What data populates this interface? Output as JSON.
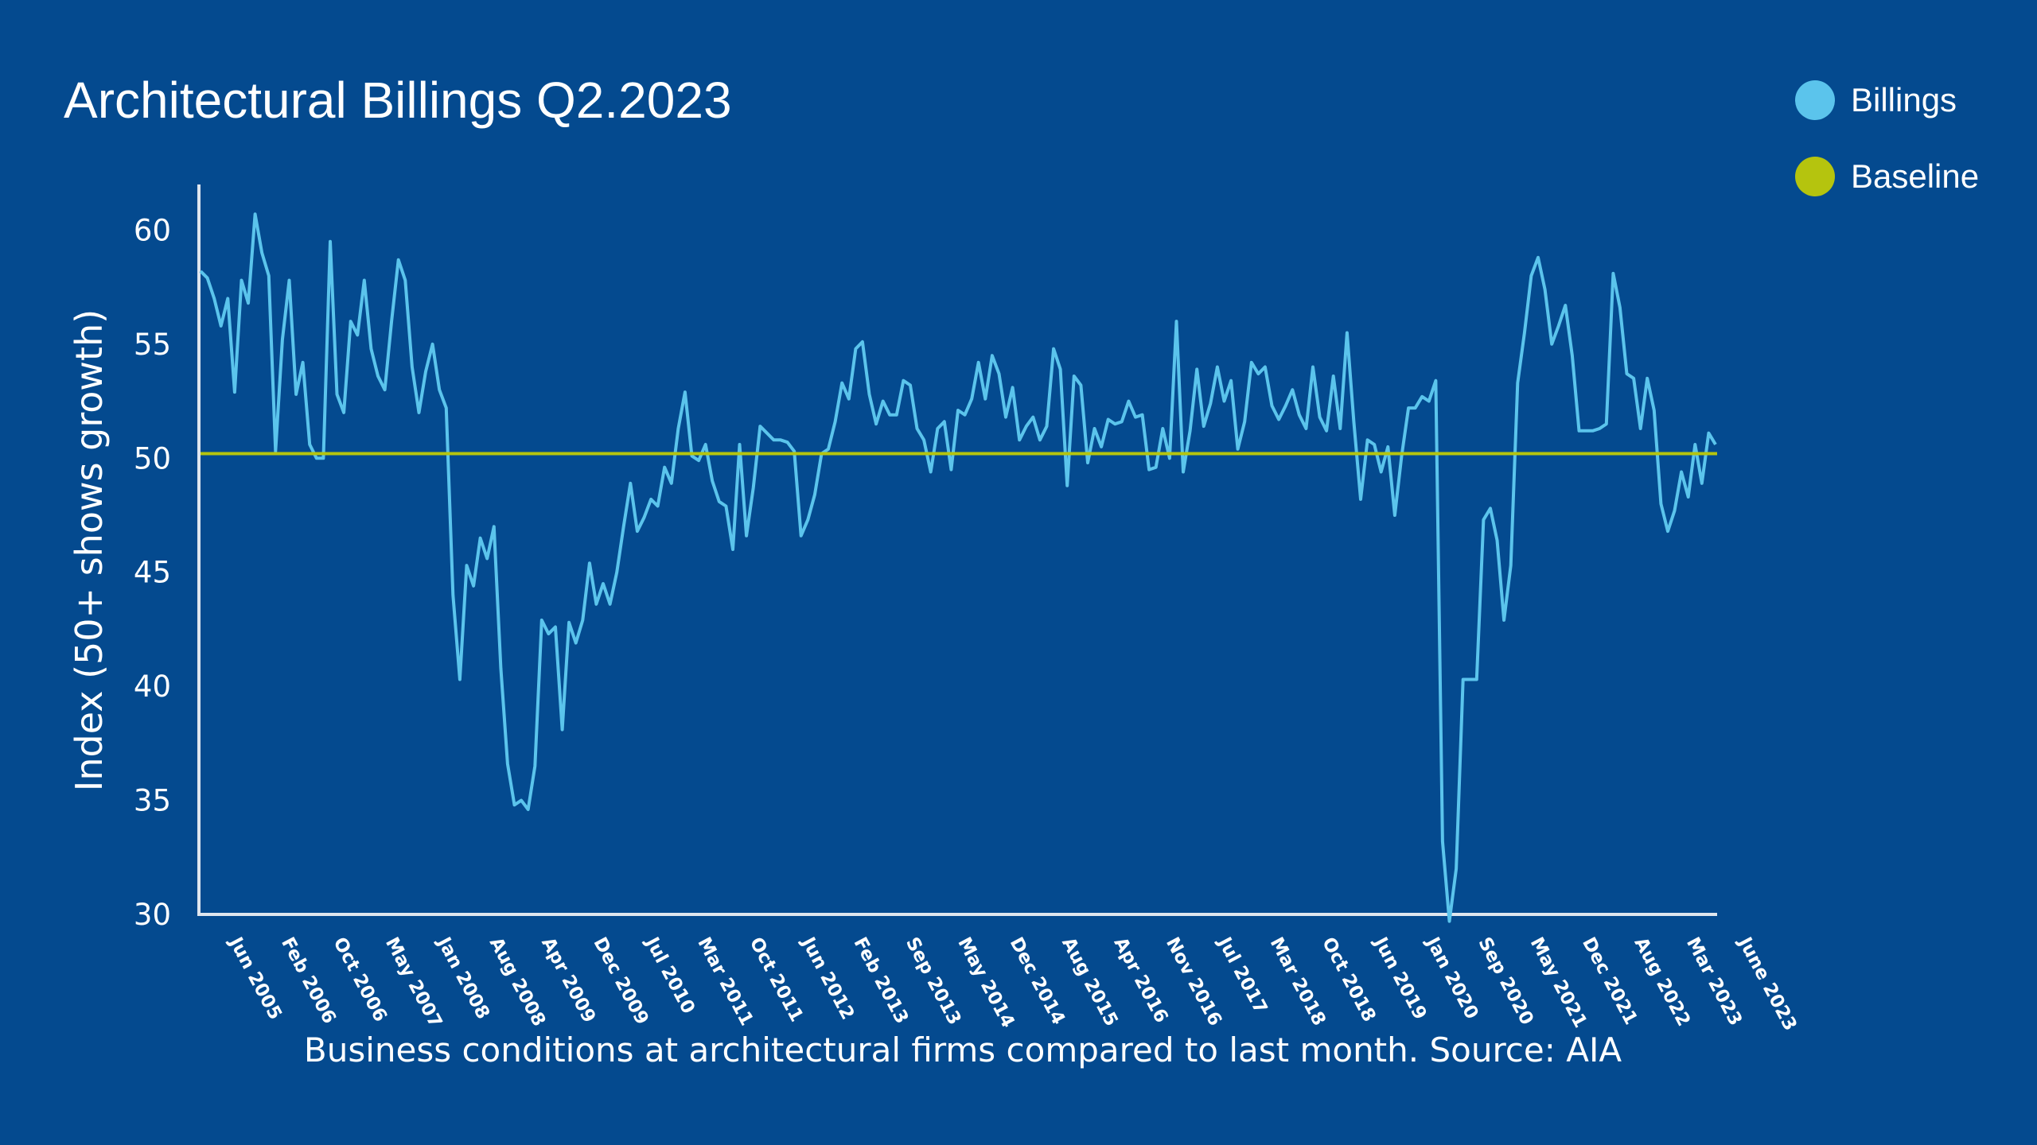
{
  "colors": {
    "background": "#044a8f",
    "billings": "#5bc4ec",
    "baseline": "#b5c40e",
    "axis": "#dfe6ef",
    "text": "#ffffff"
  },
  "chart_data": {
    "type": "line",
    "title": "Architectural Billings Q2.2023",
    "ylabel": "Index (50+ shows growth)",
    "xlabel": "",
    "caption": "Business conditions at architectural firms compared to last month. Source: AIA",
    "ylim": [
      30,
      62
    ],
    "yticks": [
      30,
      35,
      40,
      45,
      50,
      55,
      60
    ],
    "legend": [
      {
        "name": "Billings",
        "color": "#5bc4ec"
      },
      {
        "name": "Baseline",
        "color": "#b5c40e"
      }
    ],
    "legend_position": "top-right",
    "x_tick_labels": [
      "Jun 2005",
      "Feb 2006",
      "Oct 2006",
      "May 2007",
      "Jan 2008",
      "Aug 2008",
      "Apr 2009",
      "Dec 2009",
      "Jul 2010",
      "Mar 2011",
      "Oct 2011",
      "Jun 2012",
      "Feb 2013",
      "Sep 2013",
      "May 2014",
      "Dec 2014",
      "Aug 2015",
      "Apr 2016",
      "Nov 2016",
      "Jul 2017",
      "Mar 2018",
      "Oct 2018",
      "Jun 2019",
      "Jan 2020",
      "Sep 2020",
      "May 2021",
      "Dec 2021",
      "Aug 2022",
      "Mar 2023",
      "June 2023"
    ],
    "series": [
      {
        "name": "Billings",
        "values": [
          58.2,
          57.9,
          57.0,
          55.8,
          57.0,
          52.9,
          57.8,
          56.8,
          60.7,
          59.0,
          58.0,
          50.3,
          55.2,
          57.8,
          52.8,
          54.2,
          50.6,
          50.0,
          50.0,
          59.5,
          52.8,
          52.0,
          56.0,
          55.4,
          57.8,
          54.8,
          53.6,
          53.0,
          56.0,
          58.7,
          57.8,
          54.0,
          52.0,
          53.8,
          55.0,
          53.0,
          52.2,
          44.0,
          40.3,
          45.3,
          44.4,
          46.5,
          45.6,
          47.0,
          40.8,
          36.6,
          34.8,
          35.0,
          34.6,
          36.5,
          42.9,
          42.3,
          42.6,
          38.1,
          42.8,
          41.9,
          42.9,
          45.4,
          43.6,
          44.5,
          43.6,
          45.0,
          47.0,
          48.9,
          46.8,
          47.4,
          48.2,
          47.9,
          49.6,
          48.9,
          51.3,
          52.9,
          50.1,
          49.9,
          50.6,
          49.0,
          48.1,
          47.9,
          46.0,
          50.6,
          46.6,
          48.7,
          51.4,
          51.1,
          50.8,
          50.8,
          50.7,
          50.3,
          46.6,
          47.3,
          48.4,
          50.2,
          50.4,
          51.6,
          53.3,
          52.6,
          54.8,
          55.1,
          52.8,
          51.5,
          52.5,
          51.9,
          51.9,
          53.4,
          53.2,
          51.3,
          50.8,
          49.4,
          51.3,
          51.6,
          49.5,
          52.1,
          51.9,
          52.6,
          54.2,
          52.6,
          54.5,
          53.7,
          51.8,
          53.1,
          50.8,
          51.4,
          51.8,
          50.8,
          51.4,
          54.8,
          53.9,
          48.8,
          53.6,
          53.2,
          49.8,
          51.3,
          50.5,
          51.7,
          51.5,
          51.6,
          52.5,
          51.8,
          51.9,
          49.5,
          49.6,
          51.3,
          50.0,
          56.0,
          49.4,
          51.2,
          53.9,
          51.4,
          52.4,
          54.0,
          52.5,
          53.4,
          50.4,
          51.6,
          54.2,
          53.7,
          54.0,
          52.3,
          51.7,
          52.3,
          53.0,
          51.9,
          51.3,
          54.0,
          51.8,
          51.2,
          53.6,
          51.3,
          55.5,
          51.6,
          48.2,
          50.8,
          50.6,
          49.4,
          50.5,
          47.5,
          50.1,
          52.2,
          52.2,
          52.7,
          52.5,
          53.4,
          33.2,
          29.7,
          32.0,
          40.3,
          40.3,
          40.3,
          47.3,
          47.8,
          46.4,
          42.9,
          45.3,
          53.3,
          55.5,
          58.0,
          58.8,
          57.4,
          55.0,
          55.8,
          56.7,
          54.5,
          51.2,
          51.2,
          51.2,
          51.3,
          51.5,
          58.1,
          56.6,
          53.7,
          53.5,
          51.3,
          53.5,
          52.1,
          48.0,
          46.8,
          47.7,
          49.4,
          48.3,
          50.6,
          48.9,
          51.1,
          50.6
        ]
      },
      {
        "name": "Baseline",
        "values": [
          50.2,
          50.2
        ]
      }
    ]
  }
}
